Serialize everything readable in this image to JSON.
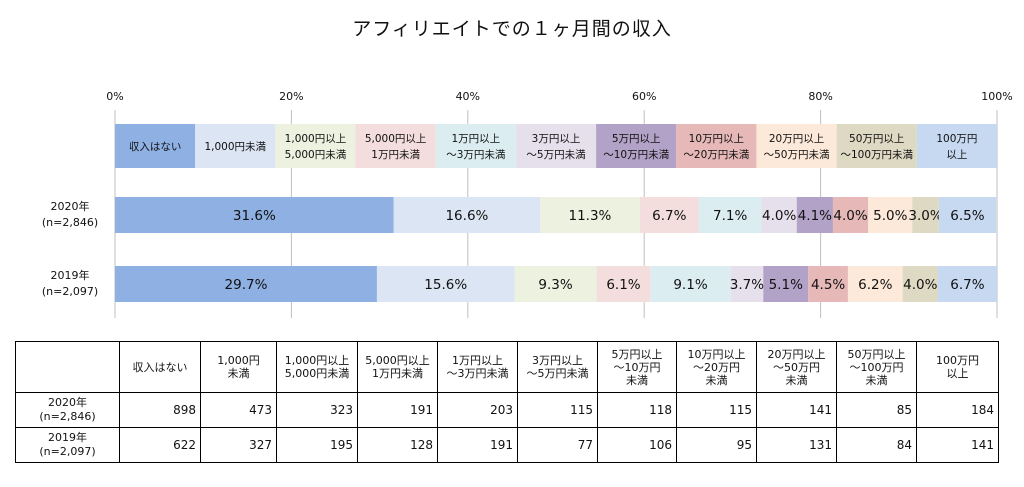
{
  "title": "アフィリエイトでの１ヶ月間の収入",
  "chart_data": {
    "type": "bar",
    "orientation": "horizontal-stacked-100",
    "xlim": [
      0,
      100
    ],
    "x_ticks": [
      "0%",
      "20%",
      "40%",
      "60%",
      "80%",
      "100%"
    ],
    "legend_position": "top",
    "categories": [
      "2020年\n(n=2,846)",
      "2019年\n(n=2,097)"
    ],
    "series": [
      {
        "name": "収入はない",
        "color": "#8eb0e3",
        "values": [
          31.6,
          29.7
        ],
        "labels": [
          "31.6%",
          "29.7%"
        ]
      },
      {
        "name": "1,000円未満",
        "color": "#dce5f3",
        "values": [
          16.6,
          15.6
        ],
        "labels": [
          "16.6%",
          "15.6%"
        ]
      },
      {
        "name": "1,000円以上\n5,000円未満",
        "color": "#ecf1e0",
        "values": [
          11.3,
          9.3
        ],
        "labels": [
          "11.3%",
          "9.3%"
        ]
      },
      {
        "name": "5,000円以上\n1万円未満",
        "color": "#f3dedd",
        "values": [
          6.7,
          6.1
        ],
        "labels": [
          "6.7%",
          "6.1%"
        ]
      },
      {
        "name": "1万円以上\n～3万円未満",
        "color": "#dcedf1",
        "values": [
          7.1,
          9.1
        ],
        "labels": [
          "7.1%",
          "9.1%"
        ]
      },
      {
        "name": "3万円以上\n～5万円未満",
        "color": "#e6e0ec",
        "values": [
          4.0,
          3.7
        ],
        "labels": [
          "4.0%",
          "3.7%"
        ]
      },
      {
        "name": "5万円以上\n～10万円未満",
        "color": "#b3a2c7",
        "values": [
          4.1,
          5.1
        ],
        "labels": [
          "4.1%",
          "5.1%"
        ]
      },
      {
        "name": "10万円以上\n～20万円未満",
        "color": "#e6b9b8",
        "values": [
          4.0,
          4.5
        ],
        "labels": [
          "4.0%",
          "4.5%"
        ]
      },
      {
        "name": "20万円以上\n～50万円未満",
        "color": "#fde9d9",
        "values": [
          5.0,
          6.2
        ],
        "labels": [
          "5.0%",
          "6.2%"
        ]
      },
      {
        "name": "50万円以上\n～100万円未満",
        "color": "#ddd9c3",
        "values": [
          3.0,
          4.0
        ],
        "labels": [
          "3.0%",
          "4.0%"
        ]
      },
      {
        "name": "100万円\n以上",
        "color": "#c6d9f1",
        "values": [
          6.5,
          6.7
        ],
        "labels": [
          "6.5%",
          "6.7%"
        ]
      }
    ]
  },
  "table": {
    "headers": [
      "",
      "収入はない",
      "1,000円\n未満",
      "1,000円以上\n5,000円未満",
      "5,000円以上\n1万円未満",
      "1万円以上\n～3万円未満",
      "3万円以上\n～5万円未満",
      "5万円以上\n～10万円\n未満",
      "10万円以上\n～20万円\n未満",
      "20万円以上\n～50万円\n未満",
      "50万円以上\n～100万円\n未満",
      "100万円\n以上"
    ],
    "rows": [
      {
        "label": "2020年\n(n=2,846)",
        "values": [
          "898",
          "473",
          "323",
          "191",
          "203",
          "115",
          "118",
          "115",
          "141",
          "85",
          "184"
        ]
      },
      {
        "label": "2019年\n(n=2,097)",
        "values": [
          "622",
          "327",
          "195",
          "128",
          "191",
          "77",
          "106",
          "95",
          "131",
          "84",
          "141"
        ]
      }
    ]
  }
}
